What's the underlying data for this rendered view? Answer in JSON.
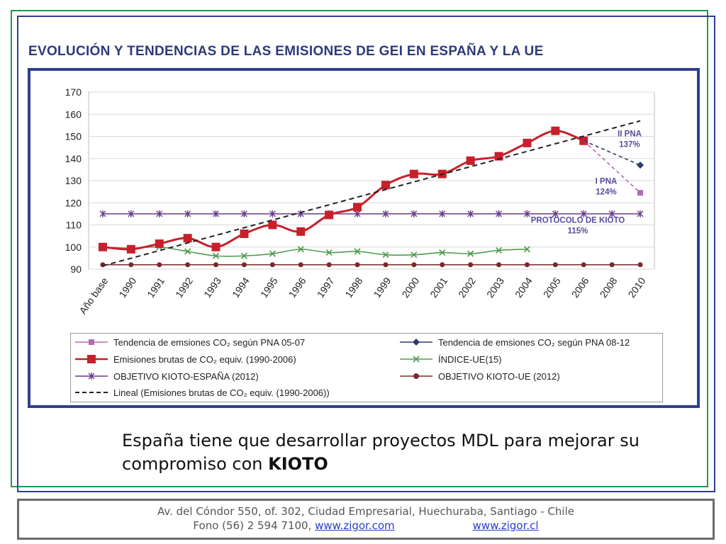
{
  "slide": {
    "title": "EVOLUCIÓN Y TENDENCIAS DE LAS EMISIONES DE GEI EN ESPAÑA Y LA UE",
    "caption_text": "España tiene que desarrollar proyectos MDL para mejorar su compromiso con ",
    "caption_bold": "KIOTO"
  },
  "footer": {
    "address": "Av.  del Cóndor 550, of. 302, Ciudad Empresarial, Huechuraba, Santiago - Chile",
    "phone": "Fono (56) 2 594 7100, ",
    "link1": "www.zigor.com",
    "link2": "www.zigor.cl"
  },
  "colors": {
    "frame_green": "#1f9a4a",
    "frame_blue": "#2e3f8f",
    "red_series": "#c8202a",
    "green_series": "#4f9a4f",
    "purple_series": "#6a3a8c",
    "brown_series": "#7a2a2a",
    "dashed_series": "#222222",
    "pna0507": "#b36ab3",
    "pna0812": "#2e3a6a",
    "annotation": "#5a4b9c"
  },
  "chart_data": {
    "type": "line",
    "categories": [
      "Año base",
      "1990",
      "1991",
      "1992",
      "1993",
      "1994",
      "1995",
      "1996",
      "1997",
      "1998",
      "1999",
      "2000",
      "2001",
      "2002",
      "2003",
      "2004",
      "2005",
      "2006",
      "2008",
      "2010"
    ],
    "ylim": [
      90,
      170
    ],
    "yticks": [
      90,
      100,
      110,
      120,
      130,
      140,
      150,
      160,
      170
    ],
    "grid": true,
    "legend_position": "bottom",
    "series": [
      {
        "name": "Emisiones brutas de CO₂ equiv. (1990-2006)",
        "marker": "square",
        "values": [
          100,
          99,
          101.5,
          104,
          100,
          106,
          110,
          107,
          114.5,
          118,
          128,
          133,
          133,
          139,
          141,
          147,
          152.5,
          148,
          null,
          null
        ]
      },
      {
        "name": "ÍNDICE-UE(15)",
        "marker": "x",
        "values": [
          100,
          99.5,
          100,
          98,
          96,
          96,
          97,
          99,
          97.5,
          98,
          96.5,
          96.5,
          97.5,
          97,
          98.5,
          99,
          null,
          null,
          null,
          null
        ]
      },
      {
        "name": "OBJETIVO KIOTO-ESPAÑA (2012)",
        "marker": "star",
        "values": [
          115,
          115,
          115,
          115,
          115,
          115,
          115,
          115,
          115,
          115,
          115,
          115,
          115,
          115,
          115,
          115,
          115,
          115,
          115,
          115
        ]
      },
      {
        "name": "OBJETIVO KIOTO-UE (2012)",
        "marker": "dot",
        "values": [
          92,
          92,
          92,
          92,
          92,
          92,
          92,
          92,
          92,
          92,
          92,
          92,
          92,
          92,
          92,
          92,
          92,
          92,
          92,
          92
        ]
      },
      {
        "name": "Lineal (Emisiones brutas de CO₂ equiv. (1990-2006))",
        "marker": "none",
        "dashed": true,
        "values": [
          91.5,
          null,
          null,
          null,
          null,
          null,
          null,
          null,
          null,
          null,
          null,
          null,
          null,
          null,
          null,
          null,
          null,
          null,
          null,
          157
        ]
      },
      {
        "name": "Tendencia de emsiones CO₂ según PNA 05-07",
        "marker": "small-square",
        "dashed": true,
        "values": [
          null,
          null,
          null,
          null,
          null,
          null,
          null,
          null,
          null,
          null,
          null,
          null,
          null,
          null,
          null,
          null,
          null,
          148,
          null,
          124.5
        ]
      },
      {
        "name": "Tendencia de emsiones CO₂  según PNA 08-12",
        "marker": "diamond",
        "dashed": true,
        "values": [
          null,
          null,
          null,
          null,
          null,
          null,
          null,
          null,
          null,
          null,
          null,
          null,
          null,
          null,
          null,
          null,
          null,
          148,
          null,
          137
        ]
      }
    ],
    "annotations": [
      {
        "line1": "II PNA",
        "line2": "137%"
      },
      {
        "line1": "I PNA",
        "line2": "124%"
      },
      {
        "line1": "PROTOCOLO DE KIOTO",
        "line2": "115%"
      }
    ]
  }
}
